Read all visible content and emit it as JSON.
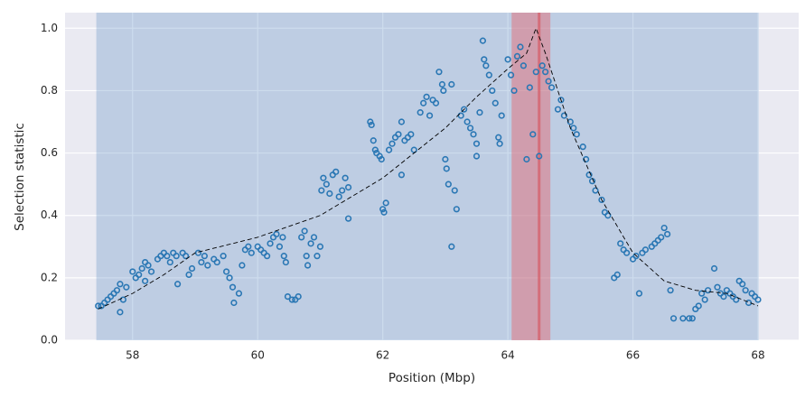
{
  "chart_data": {
    "type": "scatter",
    "xlabel": "Position (Mbp)",
    "ylabel": "Selection statistic",
    "xlim": [
      56.92,
      68.65
    ],
    "ylim": [
      0,
      1.05
    ],
    "xticks": [
      58,
      60,
      62,
      64,
      66,
      68
    ],
    "yticks": [
      {
        "value": 0,
        "label": "0.0"
      },
      0.2,
      0.4,
      0.6,
      0.8,
      {
        "value": 1,
        "label": "1.0"
      }
    ],
    "grid": true,
    "color": "#2a77b4",
    "spans": [
      {
        "xlim": [
          57.42,
          68.01
        ],
        "color": "rgba(76,130,190,0.28)"
      },
      {
        "xlim": [
          64.06,
          64.68
        ],
        "color": "rgba(225,110,120,0.5)"
      }
    ],
    "vline": {
      "x": 64.5,
      "color": "rgba(214,90,100,0.7)"
    },
    "curve": {
      "x": [
        57.45,
        58,
        58.5,
        59,
        60,
        61,
        62,
        63,
        63.5,
        64,
        64.3,
        64.45,
        64.6,
        65,
        65.5,
        66,
        66.5,
        67,
        67.5,
        68
      ],
      "values": [
        0.1,
        0.15,
        0.21,
        0.28,
        0.33,
        0.4,
        0.52,
        0.68,
        0.78,
        0.87,
        0.92,
        1.0,
        0.92,
        0.68,
        0.45,
        0.28,
        0.19,
        0.16,
        0.15,
        0.11
      ]
    },
    "x": [
      57.45,
      57.5,
      57.55,
      57.6,
      57.65,
      57.7,
      57.75,
      57.8,
      57.8,
      57.85,
      57.9,
      58.0,
      58.05,
      58.1,
      58.15,
      58.2,
      58.25,
      58.2,
      58.3,
      58.4,
      58.45,
      58.5,
      58.55,
      58.6,
      58.65,
      58.7,
      58.72,
      58.8,
      58.85,
      58.9,
      58.95,
      59.05,
      59.1,
      59.15,
      59.2,
      59.3,
      59.35,
      59.45,
      59.5,
      59.55,
      59.6,
      59.62,
      59.7,
      59.75,
      59.8,
      59.85,
      59.9,
      60.0,
      60.05,
      60.1,
      60.15,
      60.2,
      60.25,
      60.3,
      60.35,
      60.4,
      60.42,
      60.45,
      60.48,
      60.55,
      60.6,
      60.65,
      60.7,
      60.75,
      60.78,
      60.8,
      60.85,
      60.9,
      60.95,
      61.0,
      61.02,
      61.05,
      61.1,
      61.15,
      61.2,
      61.25,
      61.3,
      61.35,
      61.4,
      61.45,
      61.45,
      61.8,
      61.82,
      61.85,
      61.88,
      61.9,
      61.95,
      61.98,
      62.0,
      62.02,
      62.05,
      62.1,
      62.15,
      62.2,
      62.25,
      62.3,
      62.3,
      62.35,
      62.4,
      62.45,
      62.5,
      62.6,
      62.65,
      62.7,
      62.75,
      62.8,
      62.85,
      62.9,
      62.95,
      62.97,
      63.0,
      63.02,
      63.05,
      63.1,
      63.15,
      63.18,
      63.1,
      63.25,
      63.3,
      63.35,
      63.4,
      63.45,
      63.5,
      63.5,
      63.55,
      63.6,
      63.62,
      63.65,
      63.7,
      63.75,
      63.8,
      63.85,
      63.87,
      63.9,
      64.0,
      64.05,
      64.1,
      64.15,
      64.2,
      64.25,
      64.3,
      64.35,
      64.4,
      64.45,
      64.5,
      64.55,
      64.6,
      64.65,
      64.7,
      64.8,
      64.85,
      64.9,
      65.0,
      65.05,
      65.1,
      65.2,
      65.25,
      65.3,
      65.35,
      65.4,
      65.5,
      65.55,
      65.6,
      65.7,
      65.75,
      65.8,
      65.85,
      65.9,
      66.0,
      66.05,
      66.1,
      66.15,
      66.2,
      66.3,
      66.35,
      66.4,
      66.45,
      66.5,
      66.55,
      66.6,
      66.65,
      66.8,
      66.9,
      66.95,
      67.0,
      67.05,
      67.1,
      67.15,
      67.2,
      67.3,
      67.35,
      67.4,
      67.45,
      67.5,
      67.55,
      67.6,
      67.65,
      67.7,
      67.75,
      67.8,
      67.85,
      67.9,
      67.95,
      68.0
    ],
    "values": [
      0.11,
      0.11,
      0.12,
      0.13,
      0.14,
      0.15,
      0.16,
      0.18,
      0.09,
      0.13,
      0.17,
      0.22,
      0.2,
      0.21,
      0.23,
      0.25,
      0.24,
      0.19,
      0.22,
      0.26,
      0.27,
      0.28,
      0.27,
      0.25,
      0.28,
      0.27,
      0.18,
      0.28,
      0.27,
      0.21,
      0.23,
      0.28,
      0.25,
      0.27,
      0.24,
      0.26,
      0.25,
      0.27,
      0.22,
      0.2,
      0.17,
      0.12,
      0.15,
      0.24,
      0.29,
      0.3,
      0.28,
      0.3,
      0.29,
      0.28,
      0.27,
      0.31,
      0.33,
      0.34,
      0.3,
      0.33,
      0.27,
      0.25,
      0.14,
      0.13,
      0.13,
      0.14,
      0.33,
      0.35,
      0.27,
      0.24,
      0.31,
      0.33,
      0.27,
      0.3,
      0.48,
      0.52,
      0.5,
      0.47,
      0.53,
      0.54,
      0.46,
      0.48,
      0.52,
      0.49,
      0.39,
      0.7,
      0.69,
      0.64,
      0.61,
      0.6,
      0.59,
      0.58,
      0.42,
      0.41,
      0.44,
      0.61,
      0.63,
      0.65,
      0.66,
      0.7,
      0.53,
      0.64,
      0.65,
      0.66,
      0.61,
      0.73,
      0.76,
      0.78,
      0.72,
      0.77,
      0.76,
      0.86,
      0.82,
      0.8,
      0.58,
      0.55,
      0.5,
      0.3,
      0.48,
      0.42,
      0.82,
      0.72,
      0.74,
      0.7,
      0.68,
      0.66,
      0.59,
      0.63,
      0.73,
      0.96,
      0.9,
      0.88,
      0.85,
      0.8,
      0.76,
      0.65,
      0.63,
      0.72,
      0.9,
      0.85,
      0.8,
      0.91,
      0.94,
      0.88,
      0.58,
      0.81,
      0.66,
      0.86,
      0.59,
      0.88,
      0.86,
      0.83,
      0.81,
      0.74,
      0.77,
      0.72,
      0.7,
      0.68,
      0.66,
      0.62,
      0.58,
      0.53,
      0.51,
      0.48,
      0.45,
      0.41,
      0.4,
      0.2,
      0.21,
      0.31,
      0.29,
      0.28,
      0.26,
      0.27,
      0.15,
      0.28,
      0.29,
      0.3,
      0.31,
      0.32,
      0.33,
      0.36,
      0.34,
      0.16,
      0.07,
      0.07,
      0.07,
      0.07,
      0.1,
      0.11,
      0.15,
      0.13,
      0.16,
      0.23,
      0.17,
      0.15,
      0.14,
      0.16,
      0.15,
      0.14,
      0.13,
      0.19,
      0.18,
      0.16,
      0.12,
      0.15,
      0.14,
      0.13
    ]
  }
}
